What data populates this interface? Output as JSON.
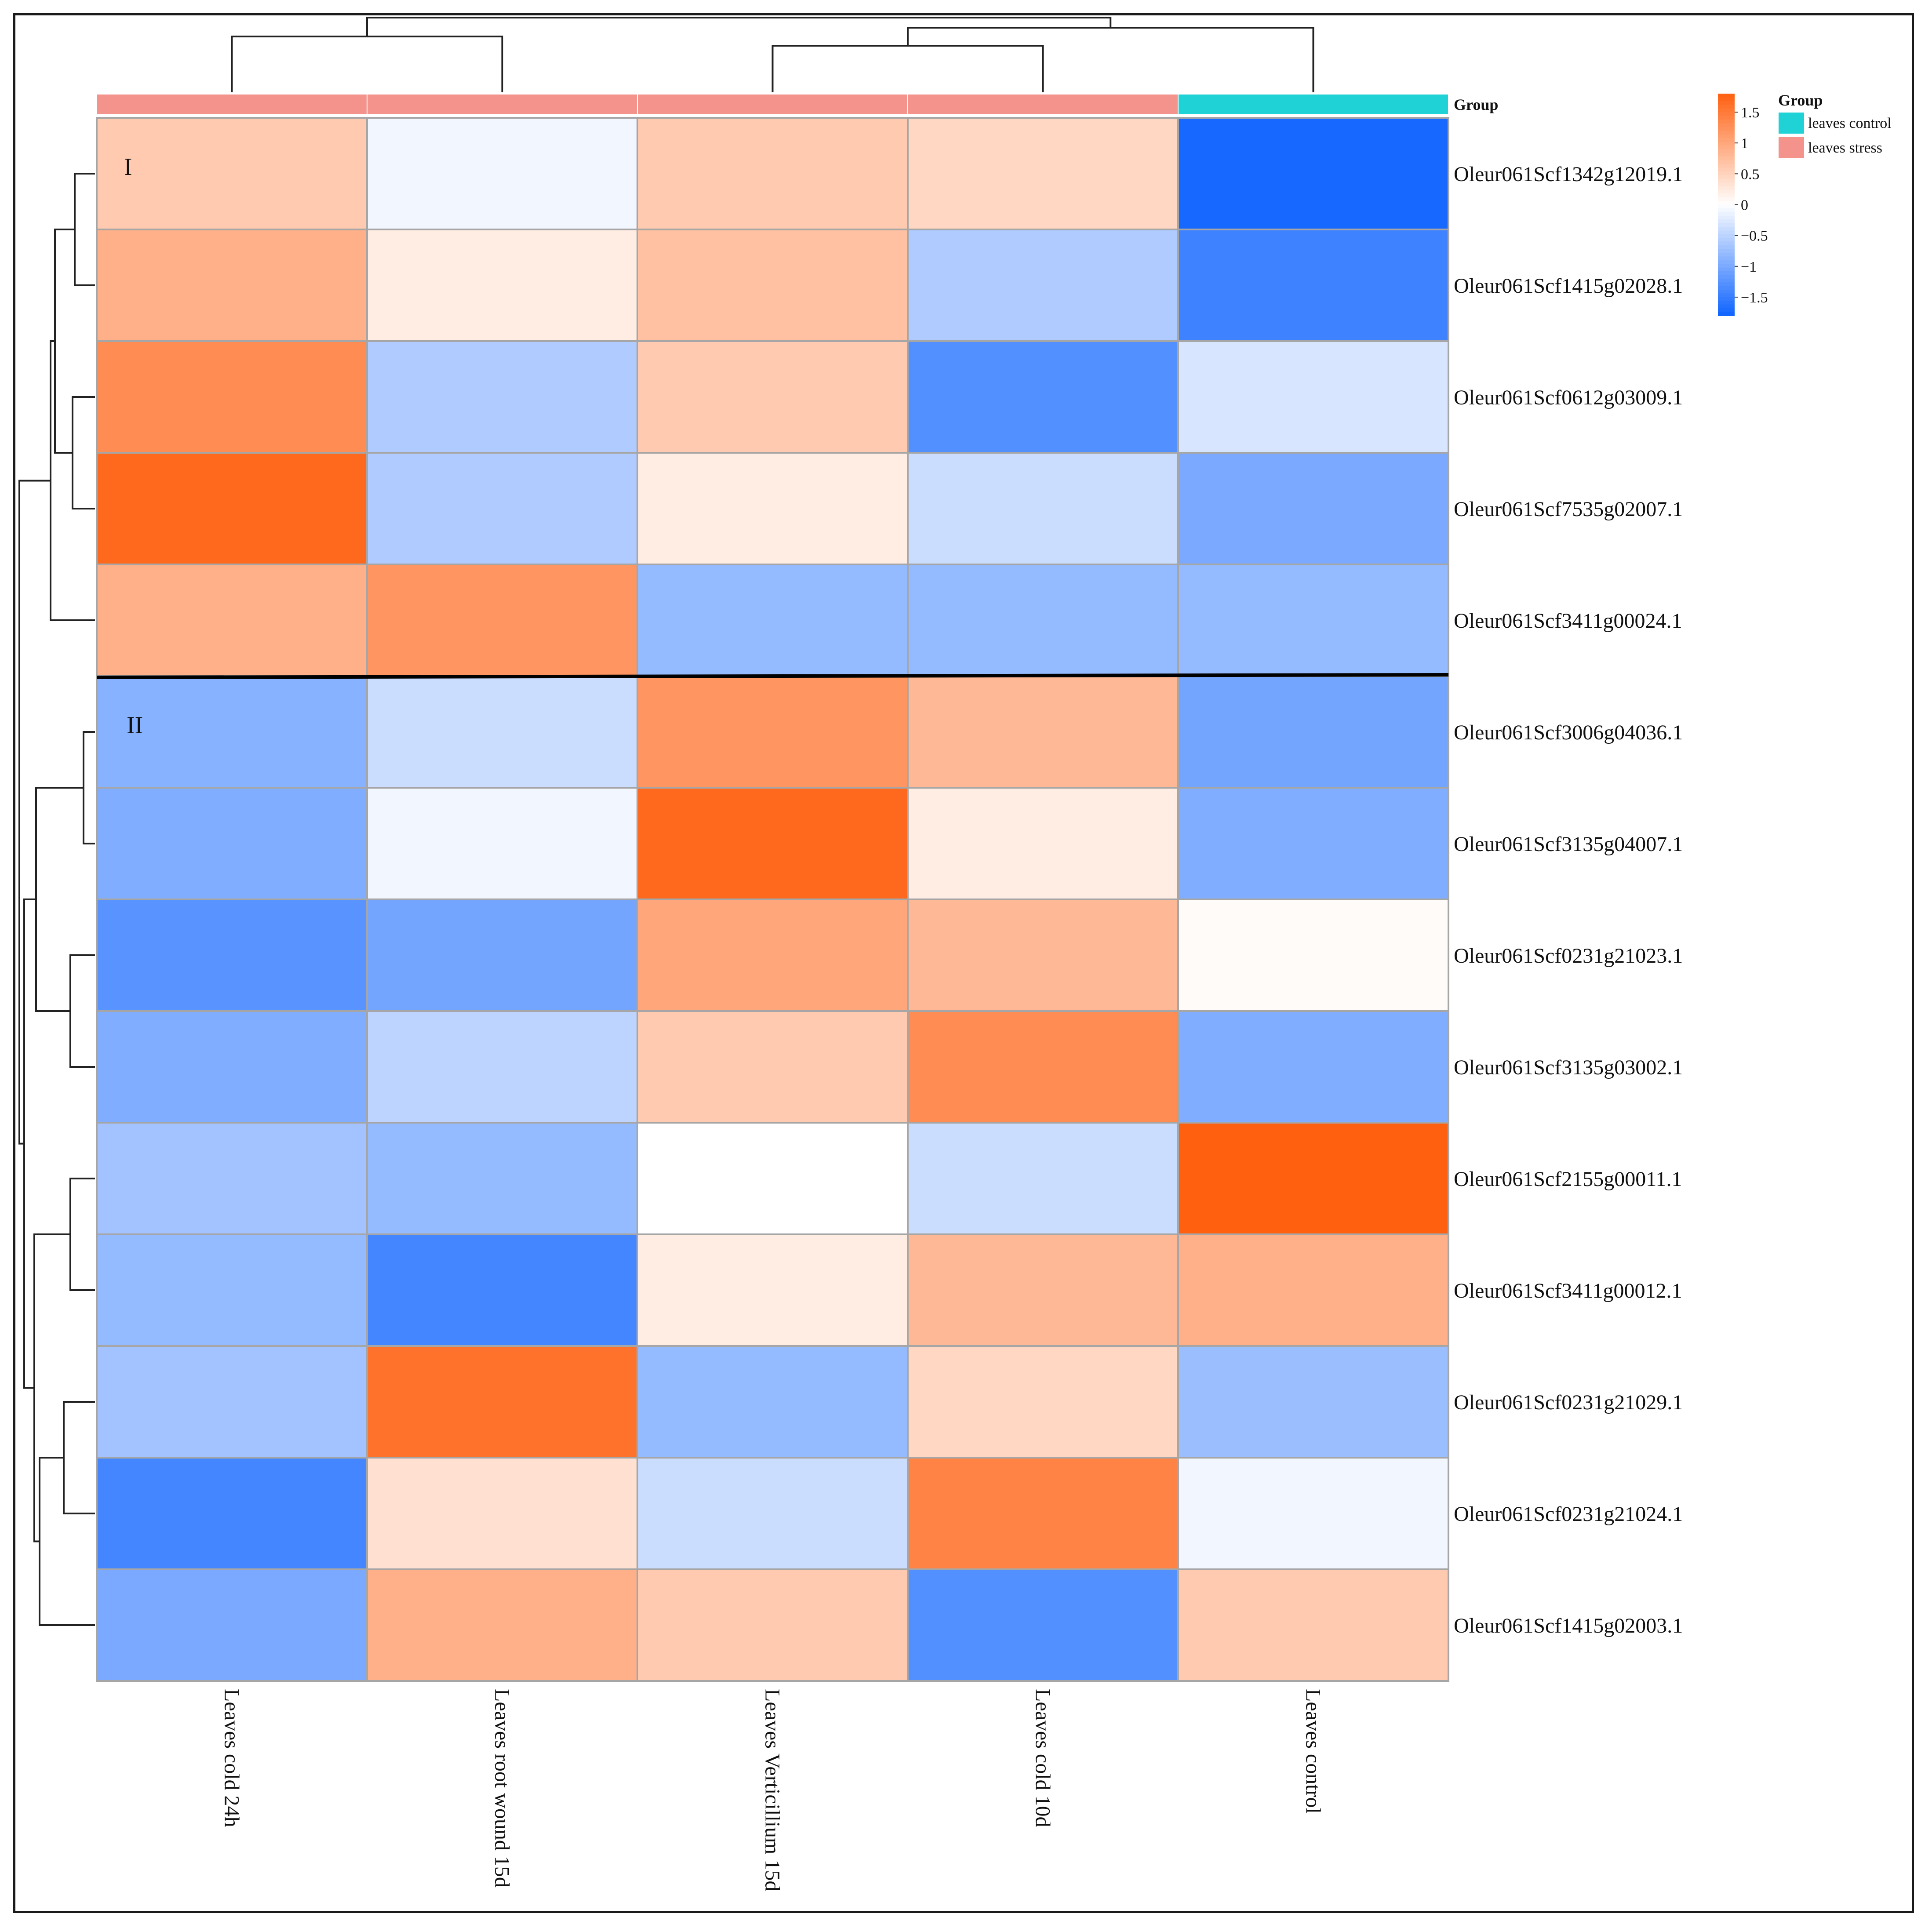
{
  "chart_data": {
    "type": "heatmap",
    "rows": [
      "Oleur061Scf1342g12019.1",
      "Oleur061Scf1415g02028.1",
      "Oleur061Scf0612g03009.1",
      "Oleur061Scf7535g02007.1",
      "Oleur061Scf3411g00024.1",
      "Oleur061Scf3006g04036.1",
      "Oleur061Scf3135g04007.1",
      "Oleur061Scf0231g21023.1",
      "Oleur061Scf3135g03002.1",
      "Oleur061Scf2155g00011.1",
      "Oleur061Scf3411g00012.1",
      "Oleur061Scf0231g21029.1",
      "Oleur061Scf0231g21024.1",
      "Oleur061Scf1415g02003.1"
    ],
    "columns": [
      "Leaves cold 24h",
      "Leaves root wound 15d",
      "Leaves Verticillium 15d",
      "Leaves cold 10d",
      "Leaves control"
    ],
    "column_groups": [
      "leaves stress",
      "leaves stress",
      "leaves stress",
      "leaves stress",
      "leaves control"
    ],
    "values": [
      [
        0.6,
        -0.1,
        0.6,
        0.45,
        -1.75
      ],
      [
        0.9,
        0.2,
        0.7,
        -0.6,
        -1.45
      ],
      [
        1.3,
        -0.6,
        0.6,
        -1.3,
        -0.3
      ],
      [
        1.7,
        -0.6,
        0.2,
        -0.4,
        -1.0
      ],
      [
        0.9,
        1.2,
        -0.8,
        -0.8,
        -0.8
      ],
      [
        -0.9,
        -0.4,
        1.2,
        0.8,
        -1.05
      ],
      [
        -0.95,
        -0.1,
        1.7,
        0.2,
        -0.95
      ],
      [
        -1.25,
        -1.05,
        1.0,
        0.8,
        0.05
      ],
      [
        -0.95,
        -0.5,
        0.6,
        1.3,
        -0.95
      ],
      [
        -0.7,
        -0.8,
        0.0,
        -0.4,
        1.85
      ],
      [
        -0.8,
        -1.4,
        0.2,
        0.8,
        0.9
      ],
      [
        -0.7,
        1.6,
        -0.8,
        0.45,
        -0.75
      ],
      [
        -1.4,
        0.35,
        -0.4,
        1.4,
        -0.1
      ],
      [
        -1.0,
        0.9,
        0.6,
        -1.3,
        0.6
      ]
    ],
    "color_scale": {
      "min": -1.8,
      "max": 1.8,
      "low": "#0f64ff",
      "mid": "#ffffff",
      "high": "#ff6010"
    },
    "colorbar_ticks": [
      "1.5",
      "1",
      "0.5",
      "0",
      "−0.5",
      "−1",
      "−1.5"
    ],
    "colorbar_tick_values": [
      1.5,
      1.0,
      0.5,
      0.0,
      -0.5,
      -1.0,
      -1.5
    ],
    "group_bar_label": "Group",
    "legend": {
      "title": "Group",
      "items": [
        {
          "label": "leaves control",
          "color": "#1ed2d6"
        },
        {
          "label": "leaves stress",
          "color": "#f3938b"
        }
      ]
    },
    "cluster_labels": [
      "I",
      "II"
    ],
    "cluster_split_after_row": 5
  }
}
